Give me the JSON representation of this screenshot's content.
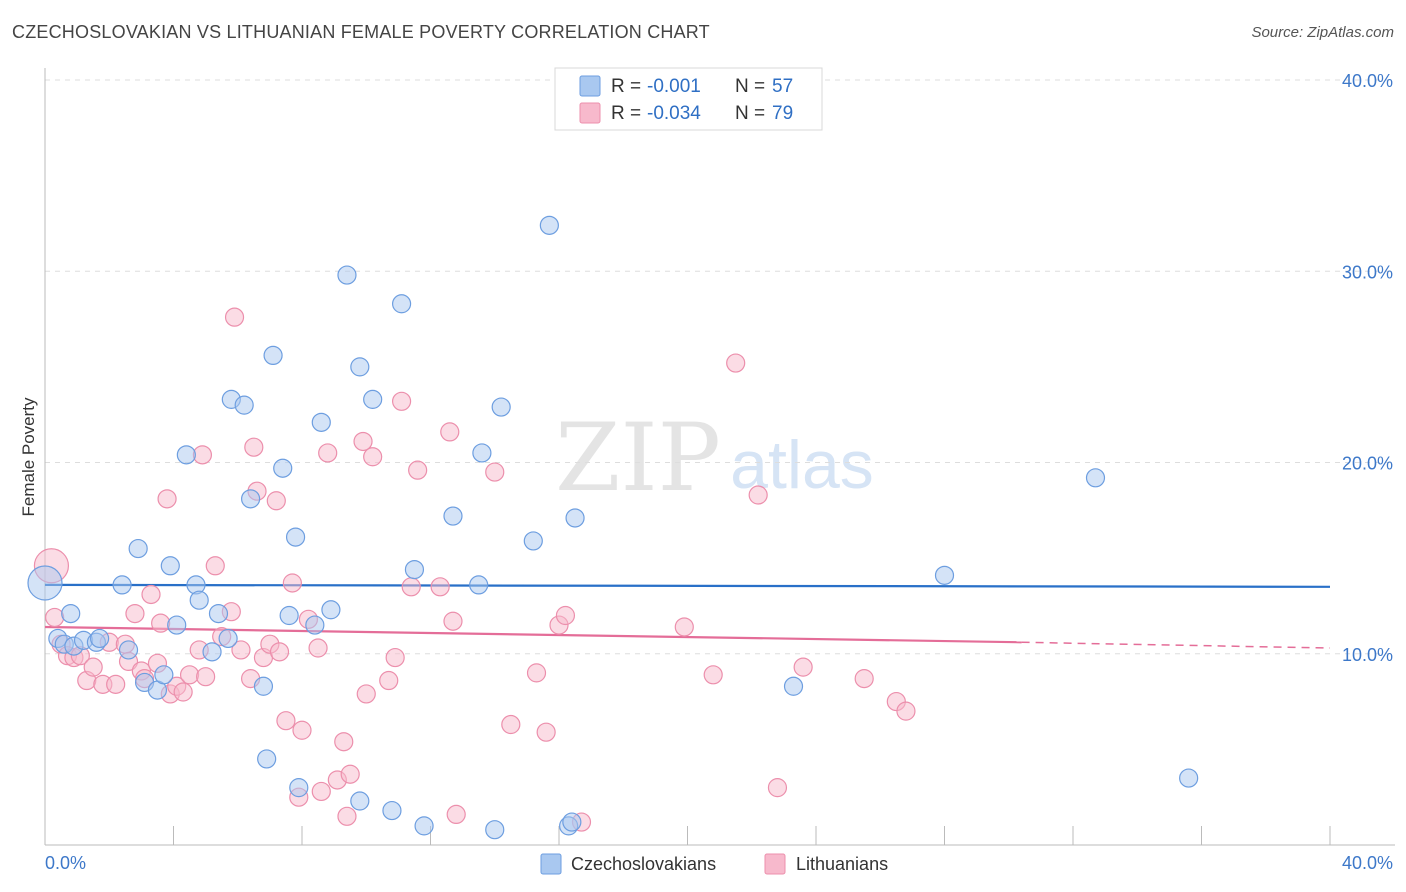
{
  "title": "CZECHOSLOVAKIAN VS LITHUANIAN FEMALE POVERTY CORRELATION CHART",
  "source": "Source: ZipAtlas.com",
  "watermark": {
    "zip": "ZIP",
    "atlas": "atlas"
  },
  "colors": {
    "blue_fill": "#a9c8f0",
    "blue_stroke": "#6d9ee0",
    "blue_line": "#2970c8",
    "pink_fill": "#f7b9cc",
    "pink_stroke": "#ec8fac",
    "pink_line": "#e46d98",
    "tick_label": "#3d78c9",
    "grid": "#dddddd"
  },
  "legend": {
    "rows": [
      {
        "r_label": "R =",
        "r_value": "-0.001",
        "n_label": "N =",
        "n_value": "57"
      },
      {
        "r_label": "R =",
        "r_value": "-0.034",
        "n_label": "N =",
        "n_value": "79"
      }
    ]
  },
  "chart_data": {
    "type": "scatter",
    "xlabel": "",
    "ylabel": "Female Poverty",
    "xlim": [
      0,
      40
    ],
    "ylim": [
      0,
      40
    ],
    "x_tick_labels": [
      "0.0%",
      "40.0%"
    ],
    "y_ticks": [
      10,
      20,
      30,
      40
    ],
    "y_tick_labels": [
      "10.0%",
      "20.0%",
      "30.0%",
      "40.0%"
    ],
    "grid": "horizontal dashed",
    "legend_position": "top-center",
    "series": [
      {
        "name": "Czechoslovakians",
        "color": "#a9c8f0",
        "trend": {
          "x0": 0,
          "y0": 13.6,
          "x1": 40,
          "y1": 13.5
        },
        "points": [
          [
            0.0,
            13.7
          ],
          [
            0.4,
            10.8
          ],
          [
            0.6,
            10.5
          ],
          [
            0.8,
            12.1
          ],
          [
            0.9,
            10.4
          ],
          [
            1.2,
            10.7
          ],
          [
            1.6,
            10.6
          ],
          [
            1.7,
            10.8
          ],
          [
            2.4,
            13.6
          ],
          [
            2.6,
            10.2
          ],
          [
            2.9,
            15.5
          ],
          [
            3.1,
            8.5
          ],
          [
            3.5,
            8.1
          ],
          [
            3.7,
            8.9
          ],
          [
            3.9,
            14.6
          ],
          [
            4.1,
            11.5
          ],
          [
            4.4,
            20.4
          ],
          [
            4.7,
            13.6
          ],
          [
            4.8,
            12.8
          ],
          [
            5.2,
            10.1
          ],
          [
            5.4,
            12.1
          ],
          [
            5.7,
            10.8
          ],
          [
            5.8,
            23.3
          ],
          [
            6.2,
            23.0
          ],
          [
            6.4,
            18.1
          ],
          [
            6.8,
            8.3
          ],
          [
            6.9,
            4.5
          ],
          [
            7.1,
            25.6
          ],
          [
            7.4,
            19.7
          ],
          [
            7.8,
            16.1
          ],
          [
            7.9,
            3.0
          ],
          [
            8.4,
            11.5
          ],
          [
            8.6,
            22.1
          ],
          [
            8.9,
            12.3
          ],
          [
            9.4,
            29.8
          ],
          [
            9.8,
            25.0
          ],
          [
            9.8,
            2.3
          ],
          [
            10.2,
            23.3
          ],
          [
            10.8,
            1.8
          ],
          [
            11.1,
            28.3
          ],
          [
            11.5,
            14.4
          ],
          [
            11.8,
            1.0
          ],
          [
            12.7,
            17.2
          ],
          [
            13.5,
            13.6
          ],
          [
            13.6,
            20.5
          ],
          [
            14.0,
            0.8
          ],
          [
            14.2,
            22.9
          ],
          [
            15.2,
            15.9
          ],
          [
            15.7,
            32.4
          ],
          [
            16.3,
            1.0
          ],
          [
            16.4,
            1.2
          ],
          [
            16.5,
            17.1
          ],
          [
            23.3,
            8.3
          ],
          [
            28.0,
            14.1
          ],
          [
            32.7,
            19.2
          ],
          [
            35.6,
            3.5
          ],
          [
            7.6,
            12.0
          ]
        ]
      },
      {
        "name": "Lithuanians",
        "color": "#f7b9cc",
        "trend": {
          "x0": 0,
          "y0": 11.4,
          "x1": 30.4,
          "y1": 10.6,
          "dashed_to_x": 40,
          "dashed_to_y": 10.3
        },
        "points": [
          [
            0.2,
            14.6
          ],
          [
            0.3,
            11.9
          ],
          [
            0.5,
            10.5
          ],
          [
            0.7,
            9.9
          ],
          [
            0.9,
            9.8
          ],
          [
            1.1,
            9.9
          ],
          [
            1.3,
            8.6
          ],
          [
            1.5,
            9.3
          ],
          [
            1.8,
            8.4
          ],
          [
            2.0,
            10.6
          ],
          [
            2.2,
            8.4
          ],
          [
            2.5,
            10.5
          ],
          [
            2.6,
            9.6
          ],
          [
            2.8,
            12.1
          ],
          [
            3.0,
            9.1
          ],
          [
            3.1,
            8.7
          ],
          [
            3.3,
            13.1
          ],
          [
            3.5,
            9.5
          ],
          [
            3.6,
            11.6
          ],
          [
            3.8,
            18.1
          ],
          [
            3.9,
            7.9
          ],
          [
            4.1,
            8.3
          ],
          [
            4.3,
            8.0
          ],
          [
            4.5,
            8.9
          ],
          [
            4.8,
            10.2
          ],
          [
            4.9,
            20.4
          ],
          [
            5.0,
            8.8
          ],
          [
            5.3,
            14.6
          ],
          [
            5.5,
            10.9
          ],
          [
            5.8,
            12.2
          ],
          [
            5.9,
            27.6
          ],
          [
            6.1,
            10.2
          ],
          [
            6.4,
            8.7
          ],
          [
            6.5,
            20.8
          ],
          [
            6.6,
            18.5
          ],
          [
            6.8,
            9.8
          ],
          [
            7.0,
            10.5
          ],
          [
            7.2,
            18.0
          ],
          [
            7.3,
            10.1
          ],
          [
            7.5,
            6.5
          ],
          [
            7.7,
            13.7
          ],
          [
            7.9,
            2.5
          ],
          [
            8.0,
            6.0
          ],
          [
            8.2,
            11.8
          ],
          [
            8.5,
            10.3
          ],
          [
            8.6,
            2.8
          ],
          [
            8.8,
            20.5
          ],
          [
            9.1,
            3.4
          ],
          [
            9.3,
            5.4
          ],
          [
            9.4,
            1.5
          ],
          [
            9.5,
            3.7
          ],
          [
            9.9,
            21.1
          ],
          [
            10.0,
            7.9
          ],
          [
            10.2,
            20.3
          ],
          [
            10.7,
            8.6
          ],
          [
            10.9,
            9.8
          ],
          [
            11.1,
            23.2
          ],
          [
            11.4,
            13.5
          ],
          [
            11.6,
            19.6
          ],
          [
            12.3,
            13.5
          ],
          [
            12.6,
            21.6
          ],
          [
            12.7,
            11.7
          ],
          [
            12.8,
            1.6
          ],
          [
            14.0,
            19.5
          ],
          [
            14.5,
            6.3
          ],
          [
            15.3,
            9.0
          ],
          [
            15.6,
            5.9
          ],
          [
            16.0,
            11.5
          ],
          [
            16.2,
            12.0
          ],
          [
            16.7,
            1.2
          ],
          [
            19.9,
            11.4
          ],
          [
            20.8,
            8.9
          ],
          [
            21.5,
            25.2
          ],
          [
            22.2,
            18.3
          ],
          [
            22.8,
            3.0
          ],
          [
            23.6,
            9.3
          ],
          [
            25.5,
            8.7
          ],
          [
            26.5,
            7.5
          ],
          [
            26.8,
            7.0
          ]
        ]
      }
    ]
  }
}
